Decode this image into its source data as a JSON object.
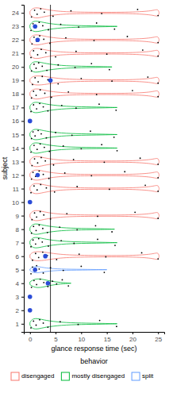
{
  "chart_data": {
    "type": "violin",
    "x_label": "glance response time (sec)",
    "y_label": "subject",
    "legend_title": "behavior",
    "legend": "bottom",
    "grid": false,
    "xlim": [
      -1.2,
      26.2
    ],
    "ylim": [
      0.4,
      24.6
    ],
    "xticks": [
      0,
      5,
      10,
      15,
      20,
      25
    ],
    "yticks": [
      1,
      2,
      3,
      4,
      5,
      6,
      7,
      8,
      9,
      10,
      11,
      12,
      13,
      14,
      15,
      16,
      17,
      18,
      19,
      20,
      21,
      22,
      23,
      24
    ],
    "reference_line": {
      "x": 4,
      "color": "#000000"
    },
    "series": [
      {
        "name": "disengaged",
        "color": "#f8766d",
        "violins": [
          {
            "subject": 24,
            "x": [
              0,
              0.5,
              1.5,
              3,
              6,
              12,
              20,
              24,
              25,
              25.2
            ],
            "width": [
              0.1,
              0.35,
              0.4,
              0.25,
              0.08,
              0.04,
              0.04,
              0.15,
              0.3,
              0
            ]
          },
          {
            "subject": 22,
            "x": [
              0,
              0.5,
              1.5,
              3,
              6,
              12,
              20,
              24,
              25,
              25.2
            ],
            "width": [
              0.1,
              0.35,
              0.4,
              0.25,
              0.08,
              0.04,
              0.04,
              0.15,
              0.3,
              0
            ]
          },
          {
            "subject": 21,
            "x": [
              0,
              0.5,
              1.5,
              3,
              6,
              12,
              20,
              24,
              25,
              25.2
            ],
            "width": [
              0.1,
              0.35,
              0.4,
              0.25,
              0.08,
              0.04,
              0.04,
              0.15,
              0.3,
              0
            ]
          },
          {
            "subject": 19,
            "x": [
              0,
              0.5,
              1.5,
              3,
              6,
              12,
              20,
              24,
              25,
              25.2
            ],
            "width": [
              0.1,
              0.3,
              0.35,
              0.3,
              0.1,
              0.05,
              0.04,
              0.15,
              0.3,
              0
            ]
          },
          {
            "subject": 18,
            "x": [
              0,
              0.5,
              1.5,
              3,
              6,
              12,
              20,
              24,
              25,
              25.2
            ],
            "width": [
              0.1,
              0.35,
              0.4,
              0.25,
              0.08,
              0.04,
              0.04,
              0.15,
              0.3,
              0
            ]
          },
          {
            "subject": 13,
            "x": [
              0,
              0.5,
              1.5,
              3,
              6,
              12,
              20,
              24,
              25,
              25.2
            ],
            "width": [
              0.1,
              0.35,
              0.4,
              0.25,
              0.08,
              0.04,
              0.04,
              0.15,
              0.3,
              0
            ]
          },
          {
            "subject": 12,
            "x": [
              0,
              0.5,
              1.5,
              3,
              6,
              12,
              20,
              24,
              25,
              25.2
            ],
            "width": [
              0.1,
              0.35,
              0.4,
              0.25,
              0.08,
              0.04,
              0.04,
              0.15,
              0.3,
              0
            ]
          },
          {
            "subject": 11,
            "x": [
              0,
              0.5,
              1.5,
              3,
              6,
              12,
              20,
              24,
              25,
              25.2
            ],
            "width": [
              0.1,
              0.35,
              0.4,
              0.25,
              0.08,
              0.04,
              0.04,
              0.15,
              0.3,
              0
            ]
          },
          {
            "subject": 9,
            "x": [
              0,
              0.5,
              1.5,
              3,
              6,
              12,
              20,
              24,
              25,
              25.2
            ],
            "width": [
              0.1,
              0.35,
              0.4,
              0.25,
              0.08,
              0.04,
              0.04,
              0.15,
              0.3,
              0
            ]
          },
          {
            "subject": 6,
            "x": [
              0,
              0.5,
              1.5,
              3,
              6,
              12,
              20,
              24,
              25,
              25.2
            ],
            "width": [
              0.1,
              0.3,
              0.35,
              0.3,
              0.1,
              0.05,
              0.04,
              0.15,
              0.3,
              0
            ]
          }
        ]
      },
      {
        "name": "mostly disengaged",
        "color": "#00ba38",
        "violins": [
          {
            "subject": 23,
            "x": [
              0,
              0.5,
              1.5,
              3,
              6,
              10,
              14,
              17
            ],
            "width": [
              0.1,
              0.38,
              0.4,
              0.25,
              0.1,
              0.05,
              0.03,
              0
            ]
          },
          {
            "subject": 20,
            "x": [
              0,
              0.5,
              1.5,
              3,
              6,
              10,
              14,
              16
            ],
            "width": [
              0.1,
              0.38,
              0.4,
              0.25,
              0.1,
              0.05,
              0.03,
              0
            ]
          },
          {
            "subject": 17,
            "x": [
              0,
              0.5,
              1.5,
              3,
              6,
              10,
              14,
              17
            ],
            "width": [
              0.1,
              0.38,
              0.4,
              0.25,
              0.1,
              0.05,
              0.03,
              0
            ]
          },
          {
            "subject": 15,
            "x": [
              0,
              0.5,
              1.5,
              3,
              6,
              10,
              14,
              17
            ],
            "width": [
              0.1,
              0.38,
              0.4,
              0.25,
              0.1,
              0.05,
              0.03,
              0
            ]
          },
          {
            "subject": 14,
            "x": [
              0,
              0.5,
              1.5,
              3,
              6,
              10,
              14,
              17
            ],
            "width": [
              0.1,
              0.38,
              0.4,
              0.25,
              0.1,
              0.05,
              0.03,
              0
            ]
          },
          {
            "subject": 8,
            "x": [
              0,
              0.5,
              1.5,
              3,
              6,
              10,
              14,
              16.5
            ],
            "width": [
              0.1,
              0.38,
              0.4,
              0.25,
              0.1,
              0.05,
              0.03,
              0
            ]
          },
          {
            "subject": 7,
            "x": [
              0,
              0.5,
              1.5,
              3,
              6,
              10,
              14,
              17
            ],
            "width": [
              0.1,
              0.38,
              0.4,
              0.25,
              0.1,
              0.05,
              0.03,
              0
            ]
          },
          {
            "subject": 4,
            "x": [
              0,
              1,
              2.5,
              4,
              6,
              8
            ],
            "width": [
              0.1,
              0.35,
              0.3,
              0.15,
              0.05,
              0
            ]
          },
          {
            "subject": 1,
            "x": [
              0,
              0.5,
              1.5,
              3,
              6,
              10,
              14,
              17
            ],
            "width": [
              0.1,
              0.38,
              0.4,
              0.25,
              0.1,
              0.05,
              0.03,
              0
            ]
          }
        ]
      },
      {
        "name": "split",
        "color": "#619cff",
        "violins": [
          {
            "subject": 5,
            "x": [
              0,
              0.5,
              1.5,
              3,
              6,
              10,
              15
            ],
            "width": [
              0.05,
              0.2,
              0.25,
              0.12,
              0.04,
              0.03,
              0
            ]
          }
        ]
      }
    ],
    "points": {
      "color": "#000000",
      "groups": [
        {
          "x": [
            0.3,
            0.9,
            1.4,
            2.1,
            2.8,
            4.5,
            8,
            14,
            21,
            25
          ],
          "y": [
            23.7,
            24.2,
            23.9,
            24.3,
            24.05,
            23.75,
            24.15,
            23.95,
            24.25,
            23.8
          ]
        },
        {
          "x": [
            0.2,
            0.6,
            1.1,
            1.8,
            2.5,
            3.6,
            6,
            9.5,
            13,
            16.5
          ],
          "y": [
            22.7,
            23.2,
            22.9,
            23.3,
            23.05,
            22.75,
            23.15,
            22.95,
            23.25,
            22.8
          ]
        },
        {
          "x": [
            0.4,
            0.8,
            1.3,
            1.9,
            2.7,
            3.9,
            7,
            12.5,
            19,
            25
          ],
          "y": [
            21.7,
            22.2,
            21.9,
            22.3,
            22.05,
            21.75,
            22.15,
            21.95,
            22.25,
            21.8
          ]
        },
        {
          "x": [
            0.2,
            0.7,
            1.5,
            2.2,
            3.1,
            5,
            9,
            15,
            22,
            25
          ],
          "y": [
            20.7,
            21.2,
            20.9,
            21.3,
            21.05,
            20.75,
            21.15,
            20.95,
            21.25,
            20.8
          ]
        },
        {
          "x": [
            0.3,
            0.8,
            1.2,
            1.7,
            2.4,
            3.3,
            5.5,
            8.8,
            12,
            15.5
          ],
          "y": [
            19.7,
            20.2,
            19.9,
            20.3,
            20.05,
            19.75,
            20.15,
            19.95,
            20.25,
            19.8
          ]
        },
        {
          "x": [
            0.5,
            1,
            1.6,
            2.4,
            3.5,
            5.5,
            10,
            16,
            23,
            25
          ],
          "y": [
            18.7,
            19.2,
            18.9,
            19.3,
            19.05,
            18.75,
            19.15,
            18.95,
            19.25,
            18.8
          ]
        },
        {
          "x": [
            0.3,
            0.7,
            1.2,
            2,
            2.9,
            4.2,
            7.5,
            13,
            20,
            25
          ],
          "y": [
            17.7,
            18.2,
            17.9,
            18.3,
            18.05,
            17.75,
            18.15,
            17.95,
            18.25,
            17.8
          ]
        },
        {
          "x": [
            0.2,
            0.7,
            1.3,
            1.9,
            2.6,
            3.5,
            6.2,
            9,
            13.5,
            16.8
          ],
          "y": [
            16.7,
            17.2,
            16.9,
            17.3,
            17.05,
            16.75,
            17.15,
            16.95,
            17.25,
            16.8
          ]
        },
        {
          "x": [
            0.3,
            0.6,
            1,
            1.6,
            2.2,
            3.2,
            5,
            8.2,
            11.8,
            16.4
          ],
          "y": [
            14.7,
            15.2,
            14.9,
            15.3,
            15.05,
            14.75,
            15.15,
            14.95,
            15.25,
            14.8
          ]
        },
        {
          "x": [
            0.2,
            0.8,
            1.4,
            2,
            2.8,
            3.8,
            6.5,
            10,
            14,
            17
          ],
          "y": [
            13.7,
            14.2,
            13.9,
            14.3,
            14.05,
            13.75,
            14.15,
            13.95,
            14.25,
            13.8
          ]
        },
        {
          "x": [
            0.4,
            0.9,
            1.5,
            2.2,
            3,
            4.6,
            8.5,
            14.5,
            21.5,
            25
          ],
          "y": [
            12.7,
            13.2,
            12.9,
            13.3,
            13.05,
            12.75,
            13.15,
            12.95,
            13.25,
            12.8
          ]
        },
        {
          "x": [
            0.3,
            0.6,
            1.1,
            1.8,
            2.6,
            3.7,
            6.8,
            12,
            18.5,
            25
          ],
          "y": [
            11.7,
            12.2,
            11.9,
            12.3,
            12.05,
            11.75,
            12.15,
            11.95,
            12.25,
            11.8
          ]
        },
        {
          "x": [
            0.2,
            0.8,
            1.4,
            2.1,
            3.2,
            4.8,
            9.2,
            15.5,
            22.5,
            25
          ],
          "y": [
            10.7,
            11.2,
            10.9,
            11.3,
            11.05,
            10.75,
            11.15,
            10.95,
            11.25,
            10.8
          ]
        },
        {
          "x": [
            0.4,
            0.9,
            1.3,
            2,
            2.7,
            4,
            7.2,
            13.2,
            20.5,
            25
          ],
          "y": [
            8.7,
            9.2,
            8.9,
            9.3,
            9.05,
            8.75,
            9.15,
            8.95,
            9.25,
            8.8
          ]
        },
        {
          "x": [
            0.3,
            0.7,
            1.2,
            1.8,
            2.5,
            3.4,
            5.8,
            9.2,
            12.8,
            16
          ],
          "y": [
            7.7,
            8.2,
            7.9,
            8.3,
            8.05,
            7.75,
            8.15,
            7.95,
            8.25,
            7.8
          ]
        },
        {
          "x": [
            0.2,
            0.6,
            1.1,
            1.7,
            2.4,
            3.6,
            6.1,
            8.6,
            13.2,
            16.6
          ],
          "y": [
            6.7,
            7.2,
            6.9,
            7.3,
            7.05,
            6.75,
            7.15,
            6.95,
            7.25,
            6.8
          ]
        },
        {
          "x": [
            0.5,
            1.1,
            1.7,
            2.5,
            3.4,
            5.2,
            9.6,
            14.8,
            21.8,
            25
          ],
          "y": [
            5.7,
            6.2,
            5.9,
            6.3,
            6.05,
            5.75,
            6.15,
            5.95,
            6.25,
            5.8
          ]
        },
        {
          "x": [
            0.2,
            0.5,
            0.9,
            1.3,
            1.8,
            2.6,
            4,
            6.5,
            10,
            14.5
          ],
          "y": [
            4.7,
            5.2,
            4.9,
            5.3,
            5.05,
            4.75,
            5.15,
            4.95,
            5.25,
            4.8
          ]
        },
        {
          "x": [
            0.3,
            0.8,
            1.3,
            2,
            2.7,
            3.5,
            4.4,
            5.2,
            6.3,
            7.5
          ],
          "y": [
            3.7,
            4.2,
            3.9,
            4.3,
            4.05,
            3.75,
            4.15,
            3.95,
            4.25,
            3.8
          ]
        },
        {
          "x": [
            0.2,
            0.7,
            1.2,
            1.9,
            2.6,
            3.5,
            5.9,
            9.4,
            13.6,
            16.9
          ],
          "y": [
            0.7,
            1.2,
            0.9,
            1.3,
            1.05,
            0.75,
            1.15,
            0.95,
            1.25,
            0.8
          ]
        }
      ]
    },
    "highlight": {
      "color": "#2a4bd7",
      "x": [
        1,
        1.5,
        4,
        0,
        1.5,
        0,
        3,
        1,
        3.5,
        0,
        0
      ],
      "y": [
        23,
        22,
        19,
        16,
        12,
        10,
        6,
        5,
        4,
        3,
        2
      ]
    }
  }
}
